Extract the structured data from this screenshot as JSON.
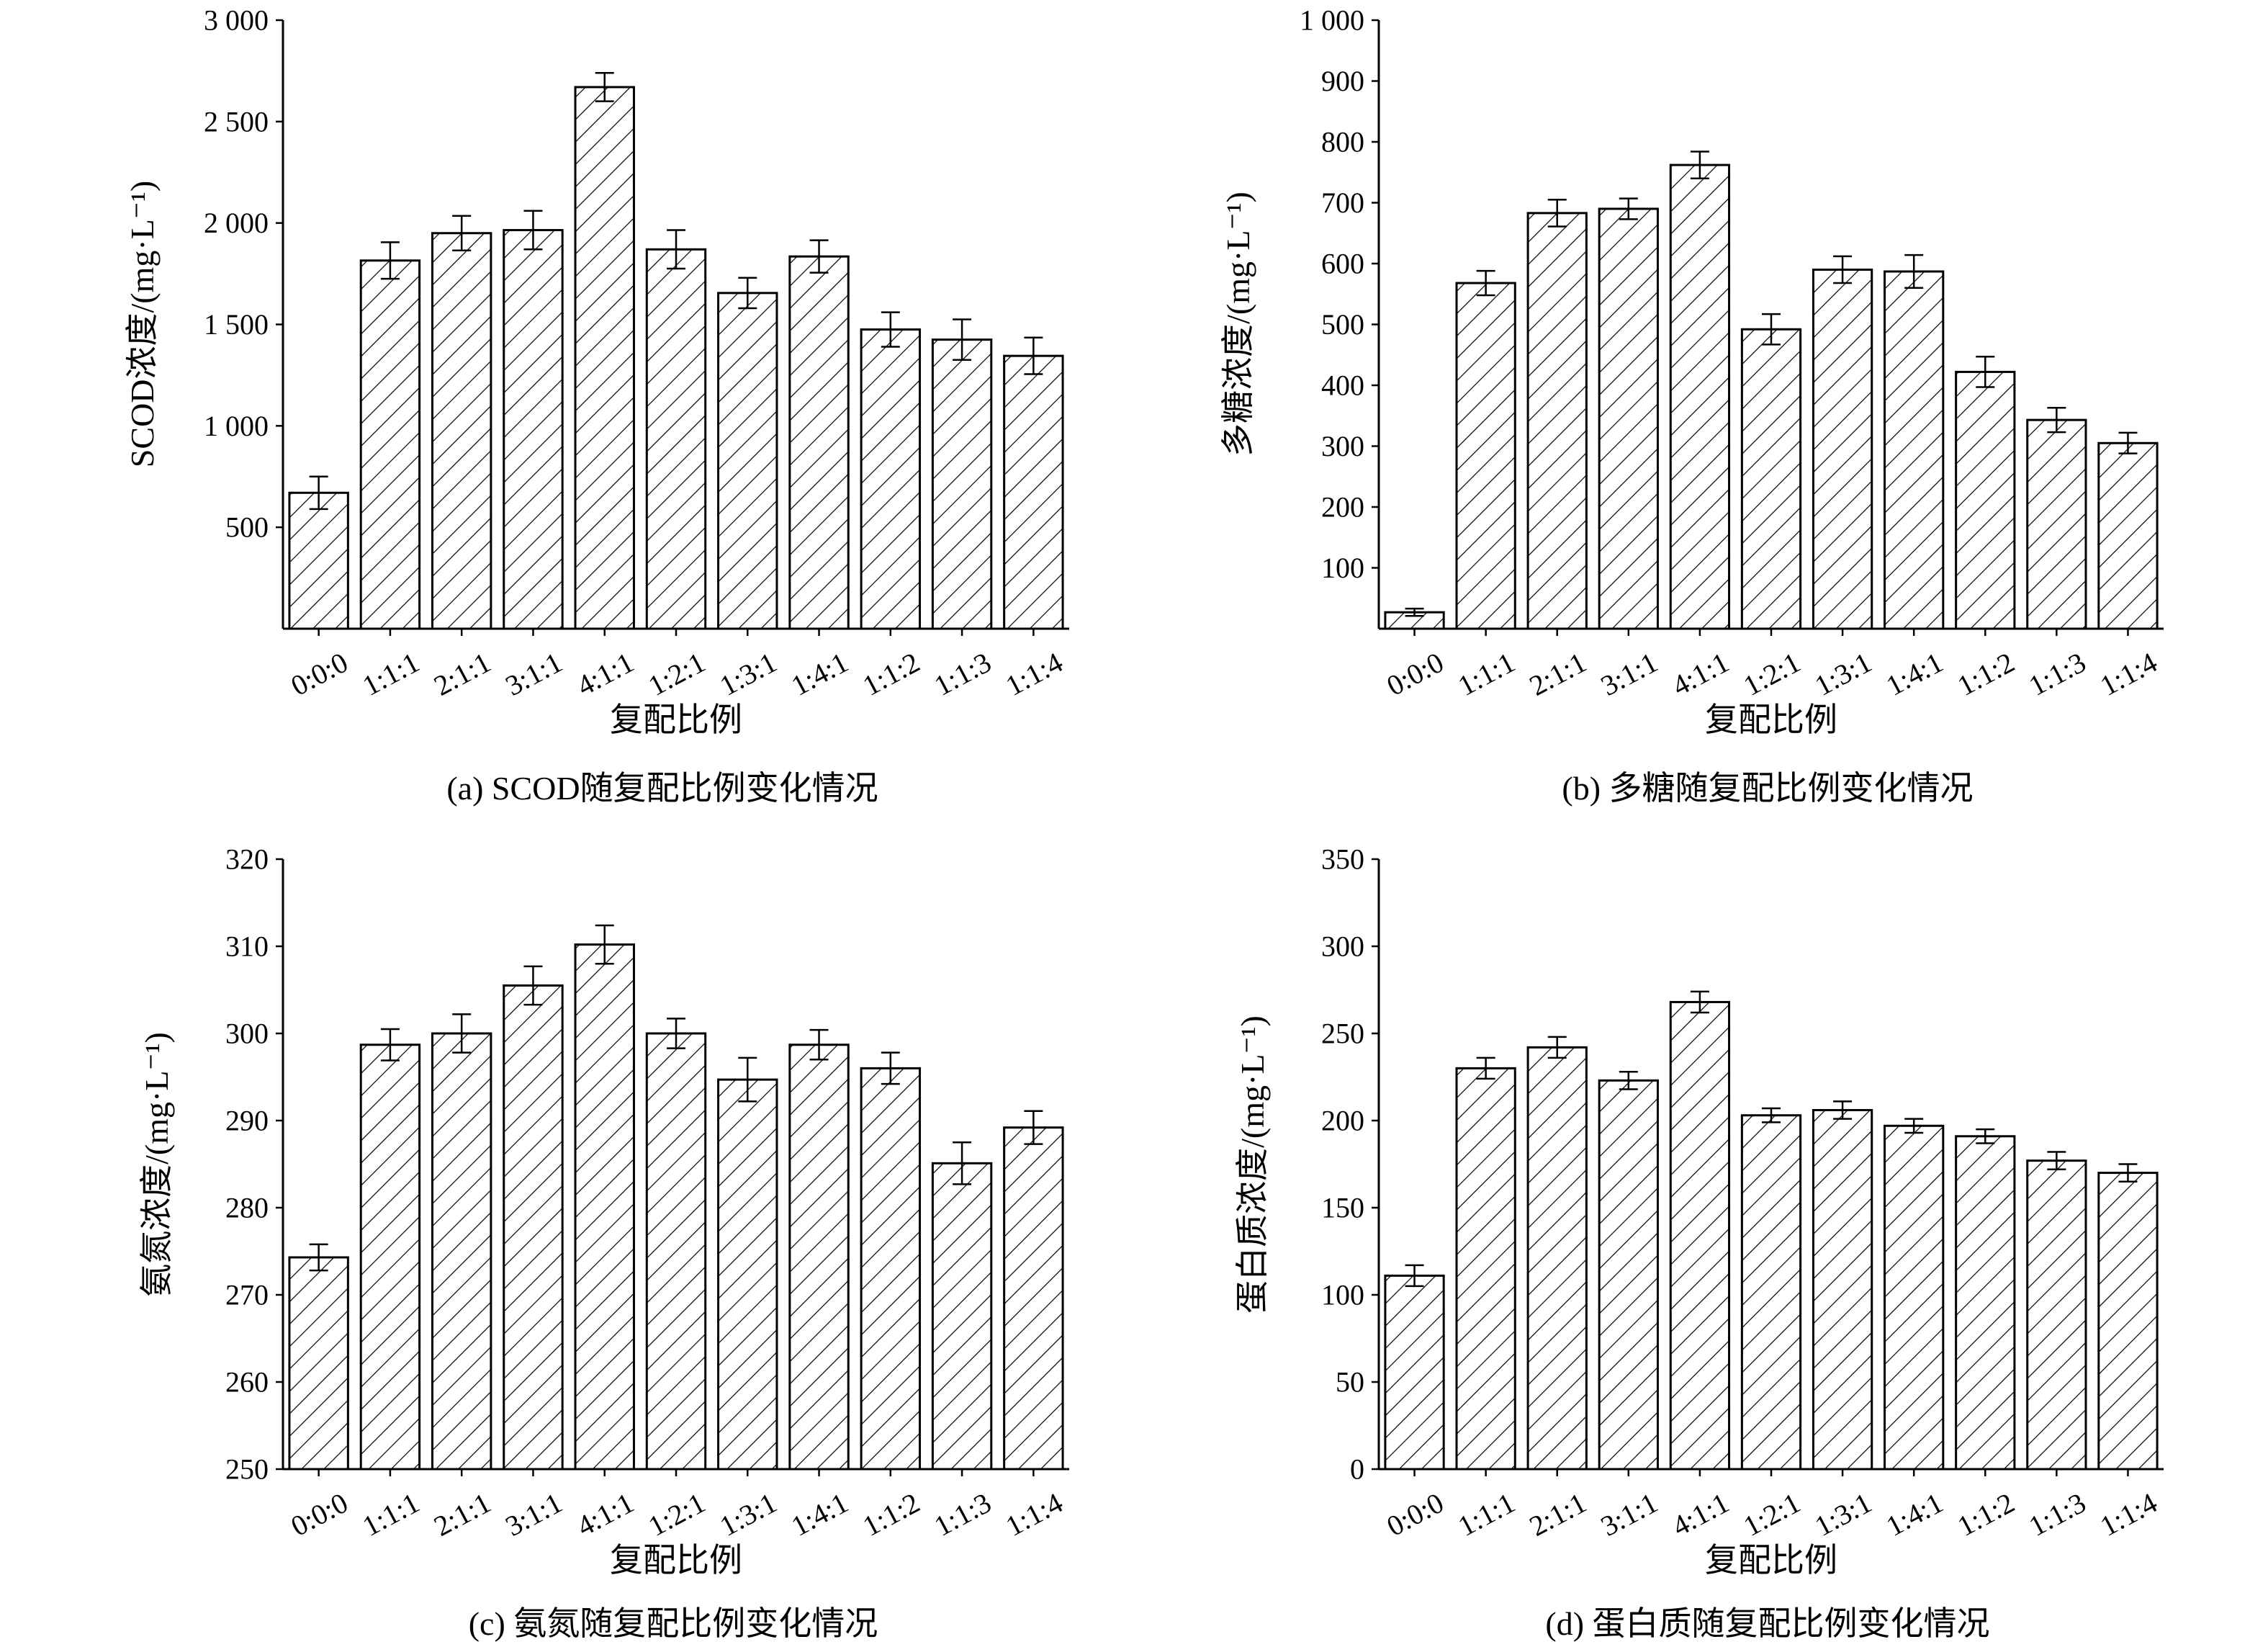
{
  "chart_data": [
    {
      "type": "bar",
      "caption": "(a) SCOD随复配比例变化情况",
      "xlabel": "复配比例",
      "ylabel": "SCOD浓度/(mg·L⁻¹)",
      "categories": [
        "0:0:0",
        "1:1:1",
        "2:1:1",
        "3:1:1",
        "4:1:1",
        "1:2:1",
        "1:3:1",
        "1:4:1",
        "1:1:2",
        "1:1:3",
        "1:1:4"
      ],
      "values": [
        670,
        1815,
        1950,
        1965,
        2670,
        1870,
        1655,
        1835,
        1475,
        1425,
        1345
      ],
      "errors": [
        80,
        90,
        85,
        95,
        70,
        95,
        75,
        80,
        85,
        100,
        90
      ],
      "ylim": [
        0,
        3000
      ],
      "yticks": [
        500,
        1000,
        1500,
        2000,
        2500,
        3000
      ],
      "ytick_labels": [
        "500",
        "1 000",
        "1 500",
        "2 000",
        "2 500",
        "3 000"
      ],
      "pattern": "hatched",
      "grid": false
    },
    {
      "type": "bar",
      "caption": "(b) 多糖随复配比例变化情况",
      "xlabel": "复配比例",
      "ylabel": "多糖浓度/(mg·L⁻¹)",
      "categories": [
        "0:0:0",
        "1:1:1",
        "2:1:1",
        "3:1:1",
        "4:1:1",
        "1:2:1",
        "1:3:1",
        "1:4:1",
        "1:1:2",
        "1:1:3",
        "1:1:4"
      ],
      "values": [
        27,
        568,
        683,
        690,
        762,
        492,
        590,
        587,
        422,
        343,
        305
      ],
      "errors": [
        6,
        20,
        22,
        17,
        22,
        25,
        22,
        27,
        25,
        20,
        17
      ],
      "ylim": [
        0,
        1000
      ],
      "yticks": [
        100,
        200,
        300,
        400,
        500,
        600,
        700,
        800,
        900,
        1000
      ],
      "ytick_labels": [
        "100",
        "200",
        "300",
        "400",
        "500",
        "600",
        "700",
        "800",
        "900",
        "1 000"
      ],
      "pattern": "hatched",
      "grid": false
    },
    {
      "type": "bar",
      "caption": "(c) 氨氮随复配比例变化情况",
      "xlabel": "复配比例",
      "ylabel": "氨氮浓度/(mg·L⁻¹)",
      "categories": [
        "0:0:0",
        "1:1:1",
        "2:1:1",
        "3:1:1",
        "4:1:1",
        "1:2:1",
        "1:3:1",
        "1:4:1",
        "1:1:2",
        "1:1:3",
        "1:1:4"
      ],
      "values": [
        274.3,
        298.7,
        300.0,
        305.5,
        310.2,
        300.0,
        294.7,
        298.7,
        296.0,
        285.1,
        289.2
      ],
      "errors": [
        1.5,
        1.8,
        2.2,
        2.2,
        2.2,
        1.7,
        2.5,
        1.7,
        1.8,
        2.4,
        1.9
      ],
      "ylim": [
        250,
        320
      ],
      "yticks": [
        250,
        260,
        270,
        280,
        290,
        300,
        310,
        320
      ],
      "ytick_labels": [
        "250",
        "260",
        "270",
        "280",
        "290",
        "300",
        "310",
        "320"
      ],
      "pattern": "hatched",
      "grid": false
    },
    {
      "type": "bar",
      "caption": "(d) 蛋白质随复配比例变化情况",
      "xlabel": "复配比例",
      "ylabel": "蛋白质浓度/(mg·L⁻¹)",
      "categories": [
        "0:0:0",
        "1:1:1",
        "2:1:1",
        "3:1:1",
        "4:1:1",
        "1:2:1",
        "1:3:1",
        "1:4:1",
        "1:1:2",
        "1:1:3",
        "1:1:4"
      ],
      "values": [
        111,
        230,
        242,
        223,
        268,
        203,
        206,
        197,
        191,
        177,
        170
      ],
      "errors": [
        6,
        6,
        6,
        5,
        6,
        4,
        5,
        4,
        4,
        5,
        5
      ],
      "ylim": [
        0,
        350
      ],
      "yticks": [
        0,
        50,
        100,
        150,
        200,
        250,
        300,
        350
      ],
      "ytick_labels": [
        "0",
        "50",
        "100",
        "150",
        "200",
        "250",
        "300",
        "350"
      ],
      "pattern": "hatched",
      "grid": false
    }
  ]
}
